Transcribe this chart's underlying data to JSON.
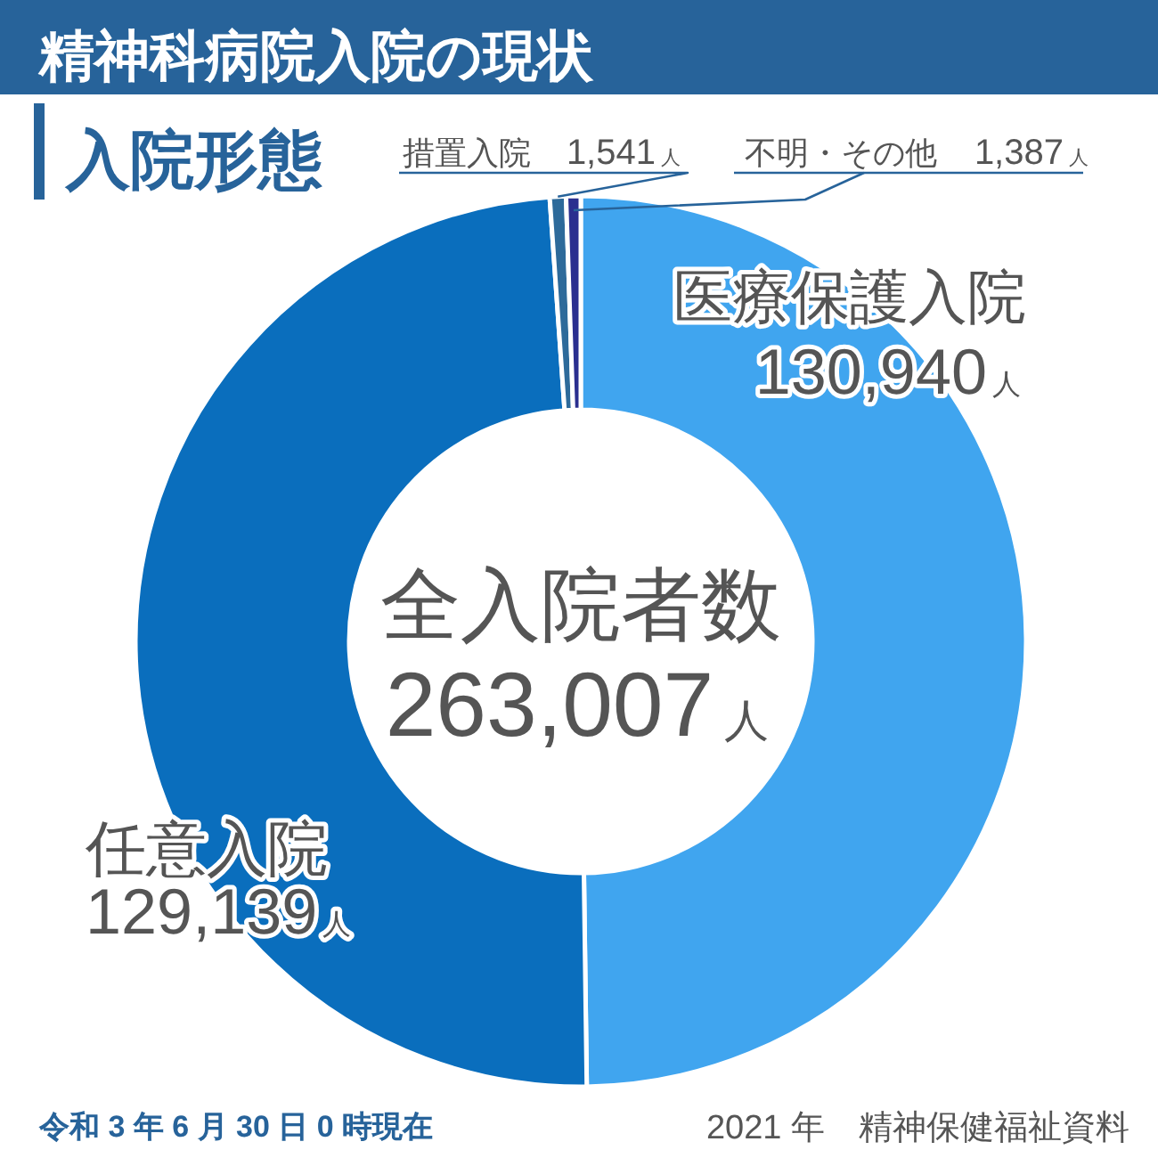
{
  "chart_data": {
    "type": "donut",
    "title": "精神科病院入院の現状",
    "subtitle": "入院形態",
    "categories": [
      "医療保護入院",
      "任意入院",
      "措置入院",
      "不明・その他"
    ],
    "values": [
      130940,
      129139,
      1541,
      1387
    ],
    "colors": [
      "#40a5ef",
      "#0a6ebd",
      "#2d6a9a",
      "#2a2f8f"
    ],
    "value_labels": [
      "130,940人",
      "129,139人",
      "1,541人",
      "1,387人"
    ],
    "annotations": [
      "全入院者数",
      "263,007人",
      "令和 3 年 6 月 30 日 0 時現在",
      "2021 年　精神保健福祉資料"
    ]
  }
}
